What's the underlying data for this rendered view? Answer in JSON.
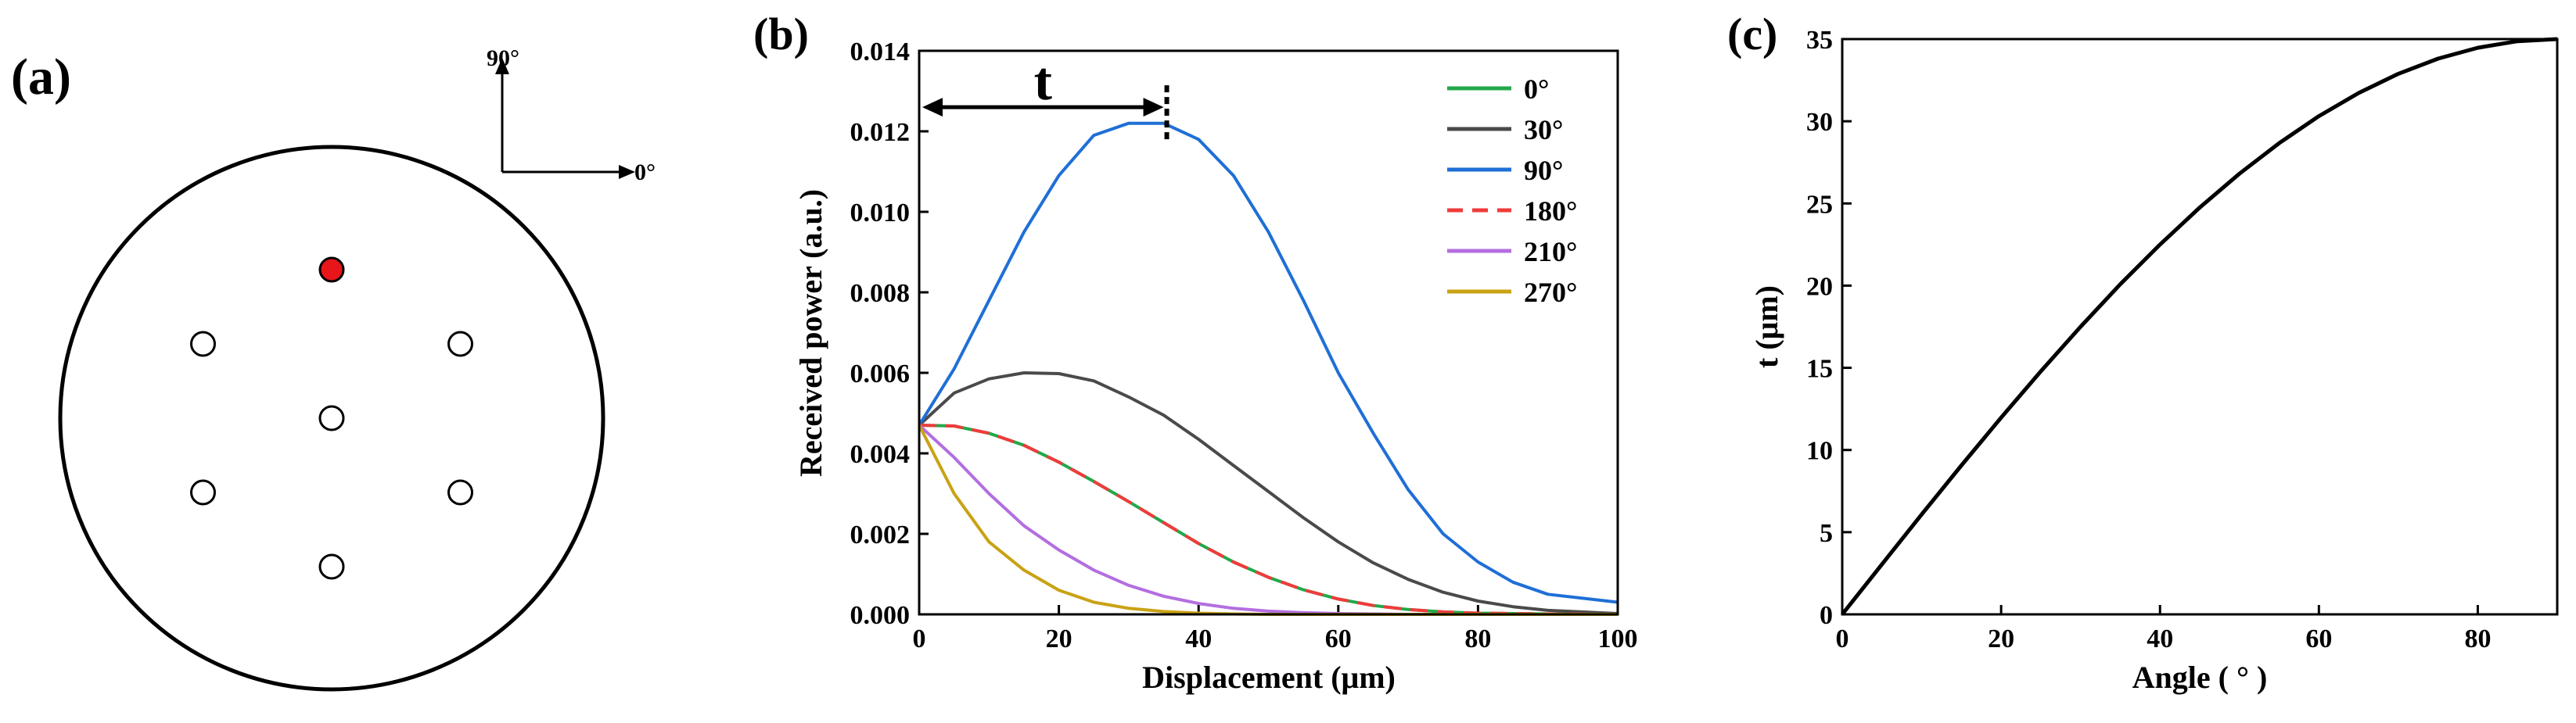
{
  "panel_a": {
    "label": "(a)",
    "arrow_up_label": "90°",
    "arrow_right_label": "0°",
    "colors": {
      "active": "#e8151b",
      "outline": "#000000",
      "inactive_fill": "#ffffff"
    },
    "fiber_cores": [
      {
        "name": "top",
        "angle_deg": 90,
        "active": true
      },
      {
        "name": "upper-left",
        "angle_deg": 150,
        "active": false
      },
      {
        "name": "upper-right",
        "angle_deg": 30,
        "active": false
      },
      {
        "name": "center",
        "angle_deg": null,
        "active": false
      },
      {
        "name": "lower-left",
        "angle_deg": 210,
        "active": false
      },
      {
        "name": "lower-right",
        "angle_deg": 330,
        "active": false
      },
      {
        "name": "bottom",
        "angle_deg": 270,
        "active": false
      }
    ]
  },
  "chart_data": [
    {
      "panel_label": "(b)",
      "type": "line",
      "xlabel": "Displacement (μm)",
      "ylabel": "Received power (a.u.)",
      "xlim": [
        0,
        100
      ],
      "ylim": [
        0,
        0.014
      ],
      "xticks": [
        "0",
        "20",
        "40",
        "60",
        "80",
        "100"
      ],
      "yticks": [
        "0.000",
        "0.002",
        "0.004",
        "0.006",
        "0.008",
        "0.010",
        "0.012",
        "0.014"
      ],
      "annotation": {
        "text": "t",
        "x_start": 0,
        "x_end": 35,
        "y": 0.0126
      },
      "series": [
        {
          "name": "0°",
          "color": "#22a84a",
          "dashed": false,
          "x": [
            0,
            5,
            10,
            15,
            20,
            25,
            30,
            35,
            40,
            45,
            50,
            55,
            60,
            65,
            70,
            75,
            80,
            90,
            100
          ],
          "values": [
            0.0047,
            0.00468,
            0.0045,
            0.0042,
            0.00378,
            0.0033,
            0.0028,
            0.00228,
            0.00176,
            0.0013,
            0.00092,
            0.00061,
            0.00038,
            0.00022,
            0.00012,
            6e-05,
            3e-05,
            1e-05,
            0
          ]
        },
        {
          "name": "30°",
          "color": "#4a4a4a",
          "dashed": false,
          "x": [
            0,
            5,
            10,
            15,
            20,
            25,
            30,
            35,
            40,
            45,
            50,
            55,
            60,
            65,
            70,
            75,
            80,
            85,
            90,
            100
          ],
          "values": [
            0.0047,
            0.0055,
            0.00585,
            0.006,
            0.00598,
            0.0058,
            0.0054,
            0.00495,
            0.00435,
            0.0037,
            0.00305,
            0.0024,
            0.0018,
            0.00128,
            0.00087,
            0.00055,
            0.00033,
            0.00019,
            0.0001,
            2e-05
          ]
        },
        {
          "name": "90°",
          "color": "#1f6fd6",
          "dashed": false,
          "x": [
            0,
            5,
            10,
            15,
            20,
            25,
            30,
            35,
            40,
            45,
            50,
            55,
            60,
            65,
            70,
            75,
            80,
            85,
            90,
            95,
            100
          ],
          "values": [
            0.0047,
            0.0061,
            0.0078,
            0.0095,
            0.0109,
            0.0119,
            0.0122,
            0.0122,
            0.0118,
            0.0109,
            0.0095,
            0.0078,
            0.006,
            0.0045,
            0.0031,
            0.002,
            0.0013,
            0.0008,
            0.0005,
            0.0004,
            0.0003
          ]
        },
        {
          "name": "180°",
          "color": "#ef3b3b",
          "dashed": true,
          "x": [
            0,
            5,
            10,
            15,
            20,
            25,
            30,
            35,
            40,
            45,
            50,
            55,
            60,
            65,
            70,
            75,
            80,
            90,
            100
          ],
          "values": [
            0.0047,
            0.00468,
            0.0045,
            0.0042,
            0.00378,
            0.0033,
            0.0028,
            0.00228,
            0.00176,
            0.0013,
            0.00092,
            0.00061,
            0.00038,
            0.00022,
            0.00012,
            6e-05,
            3e-05,
            1e-05,
            0
          ]
        },
        {
          "name": "210°",
          "color": "#b36ee0",
          "dashed": false,
          "x": [
            0,
            5,
            10,
            15,
            20,
            25,
            30,
            35,
            40,
            45,
            50,
            55,
            60,
            70,
            80,
            100
          ],
          "values": [
            0.0047,
            0.0039,
            0.003,
            0.0022,
            0.0016,
            0.0011,
            0.00072,
            0.00045,
            0.00027,
            0.00015,
            8e-05,
            4e-05,
            2e-05,
            0,
            0,
            0
          ]
        },
        {
          "name": "270°",
          "color": "#c9a214",
          "dashed": false,
          "x": [
            0,
            5,
            10,
            15,
            20,
            25,
            30,
            35,
            40,
            45,
            50,
            60,
            80,
            100
          ],
          "values": [
            0.0047,
            0.003,
            0.0018,
            0.0011,
            0.0006,
            0.0003,
            0.00015,
            7e-05,
            3e-05,
            1e-05,
            0,
            0,
            0,
            0
          ]
        }
      ]
    },
    {
      "panel_label": "(c)",
      "type": "line",
      "xlabel": "Angle ( ° )",
      "ylabel": "t (μm)",
      "xlim": [
        0,
        90
      ],
      "ylim": [
        0,
        35
      ],
      "xticks": [
        "0",
        "20",
        "40",
        "60",
        "80"
      ],
      "yticks": [
        "0",
        "5",
        "10",
        "15",
        "20",
        "25",
        "30",
        "35"
      ],
      "series": [
        {
          "name": "t",
          "color": "#000000",
          "x": [
            0,
            5,
            10,
            15,
            20,
            25,
            30,
            35,
            40,
            45,
            50,
            55,
            60,
            65,
            70,
            75,
            80,
            85,
            90
          ],
          "values": [
            0,
            3.05,
            6.08,
            9.06,
            11.97,
            14.79,
            17.5,
            20.08,
            22.5,
            24.75,
            26.81,
            28.67,
            30.31,
            31.72,
            32.89,
            33.81,
            34.47,
            34.87,
            35
          ]
        }
      ]
    }
  ]
}
